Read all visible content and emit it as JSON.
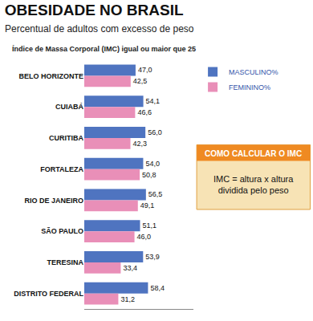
{
  "chart_data": {
    "type": "bar",
    "title": "OBESIDADE NO BRASIL",
    "subtitle": "Percentual de adultos com excesso de peso",
    "annotations": [
      "Índice de Massa Corporal (IMC) igual ou maior que 25",
      "COMO CALCULAR O IMC",
      "IMC = altura x altura",
      "dividida pelo peso"
    ],
    "orientation": "horizontal",
    "categories": [
      "BELO HORIZONTE",
      "CUIABÁ",
      "CURITIBA",
      "FORTALEZA",
      "RIO DE JANEIRO",
      "SÃO PAULO",
      "TERESINA",
      "DISTRITO FEDERAL"
    ],
    "series": [
      {
        "name": "MASCULINO%",
        "color": "#4f74c0",
        "values": [
          47.0,
          54.1,
          56.0,
          54.0,
          56.5,
          51.1,
          53.9,
          58.4
        ],
        "value_labels": [
          "47,0",
          "54,1",
          "56,0",
          "54,0",
          "56,5",
          "51,1",
          "53,9",
          "58,4"
        ]
      },
      {
        "name": "FEMININO%",
        "color": "#e98fb8",
        "values": [
          42.5,
          46.6,
          42.3,
          50.8,
          49.1,
          46.0,
          33.4,
          31.2
        ],
        "value_labels": [
          "42,5",
          "46,6",
          "42,3",
          "50,8",
          "49,1",
          "46,0",
          "33,4",
          "31,2"
        ]
      }
    ],
    "xlim": [
      0,
      100
    ],
    "xticks": [],
    "tick_labels": "y",
    "grid": false,
    "legend": "upper right",
    "data_labels": true
  }
}
